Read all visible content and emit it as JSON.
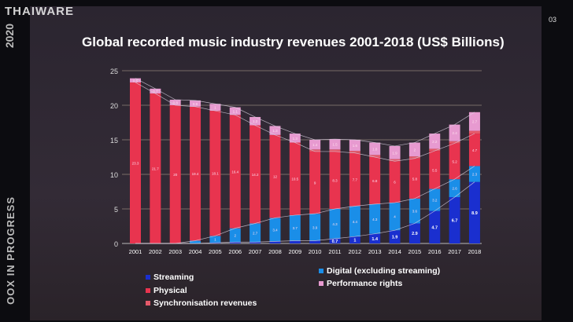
{
  "watermark": "THAIWARE",
  "side": {
    "year": "2020",
    "text": "OOX IN PROGRESS"
  },
  "page_number": "03",
  "colors": {
    "streaming": "#1a2fcf",
    "digital": "#1a8ee8",
    "physical": "#e8344f",
    "sync": "#e55a6a",
    "performance": "#e79ad0",
    "background": "#2e2733"
  },
  "chart_data": {
    "type": "bar",
    "stacked": true,
    "title": "Global recorded music industry revenues 2001-2018 (US$ Billions)",
    "categories": [
      "2001",
      "2002",
      "2003",
      "2004",
      "2005",
      "2006",
      "2007",
      "2008",
      "2009",
      "2010",
      "2011",
      "2012",
      "2013",
      "2014",
      "2015",
      "2016",
      "2017",
      "2018"
    ],
    "ylim": [
      0,
      25
    ],
    "yticks": [
      0,
      5,
      10,
      15,
      20,
      25
    ],
    "grid": true,
    "legend_placement": "bottom",
    "series": [
      {
        "name": "Streaming",
        "key": "streaming",
        "values": [
          0,
          0,
          0,
          0,
          0.1,
          0.2,
          0.2,
          0.3,
          0.4,
          0.4,
          0.7,
          1,
          1.4,
          1.9,
          2.9,
          4.7,
          6.7,
          8.9
        ]
      },
      {
        "name": "Digital (excluding streaming)",
        "key": "digital",
        "values": [
          0,
          0,
          0,
          0.4,
          1,
          2,
          2.7,
          3.4,
          3.7,
          3.9,
          4.3,
          4.4,
          4.3,
          4,
          3.6,
          3.2,
          2.6,
          2.3
        ]
      },
      {
        "name": "Physical",
        "key": "physical",
        "values": [
          23.3,
          21.7,
          20,
          19.4,
          18.1,
          16.4,
          14.2,
          12,
          10.5,
          9,
          8.3,
          7.7,
          6.8,
          6,
          5.8,
          5.5,
          5.2,
          4.7
        ]
      },
      {
        "name": "Performance rights",
        "key": "performance",
        "values": [
          0.6,
          0.7,
          0.8,
          0.9,
          1,
          1.1,
          1.2,
          1.3,
          1.3,
          1.4,
          1.5,
          1.6,
          1.8,
          1.9,
          2,
          2.2,
          2.4,
          2.7
        ]
      },
      {
        "name": "Synchronisation revenues",
        "key": "sync",
        "values": [
          0,
          0,
          0,
          0,
          0,
          0,
          0,
          0,
          0,
          0.3,
          0.3,
          0.3,
          0.3,
          0.3,
          0.3,
          0.3,
          0.3,
          0.4
        ]
      }
    ]
  }
}
